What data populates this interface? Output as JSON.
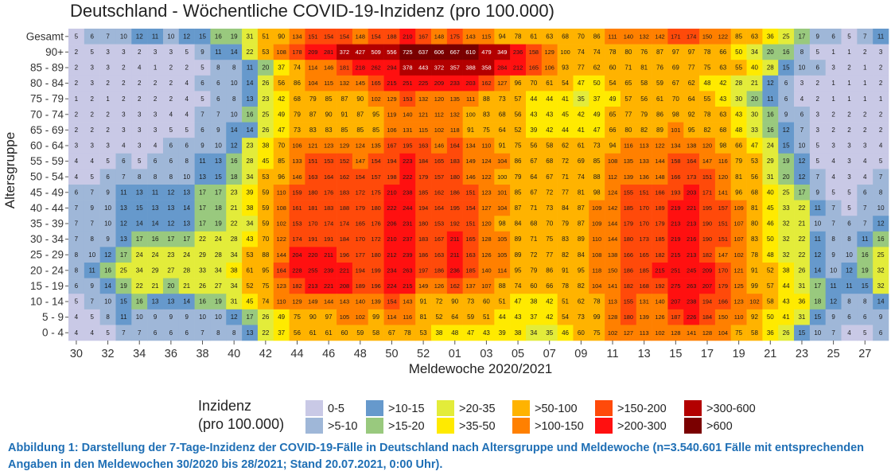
{
  "chart_data": {
    "type": "heatmap",
    "title": "Deutschland - Wöchentliche COVID-19-Inzidenz (pro 100.000)",
    "xlabel": "Meldewoche 2020/2021",
    "ylabel": "Altersgruppe",
    "x_tick_labels": [
      "30",
      "32",
      "34",
      "36",
      "38",
      "40",
      "42",
      "44",
      "46",
      "48",
      "50",
      "52",
      "01",
      "03",
      "05",
      "07",
      "09",
      "11",
      "13",
      "15",
      "17",
      "19",
      "21",
      "23",
      "25",
      "27"
    ],
    "rows": [
      "Gesamt",
      "90+",
      "85 - 89",
      "80 - 84",
      "75 - 79",
      "70 - 74",
      "65 - 69",
      "60 - 64",
      "55 - 59",
      "50 - 54",
      "45 - 49",
      "40 - 44",
      "35 - 39",
      "30 - 34",
      "25 - 29",
      "20 - 24",
      "15 - 19",
      "10 - 14",
      "5 - 9",
      "0 - 4"
    ],
    "values": [
      [
        5,
        6,
        7,
        10,
        12,
        11,
        10,
        12,
        15,
        16,
        19,
        31,
        51,
        90,
        134,
        151,
        154,
        154,
        148,
        154,
        188,
        210,
        167,
        148,
        175,
        143,
        115,
        94,
        78,
        61,
        63,
        68,
        70,
        86,
        111,
        140,
        132,
        142,
        171,
        174,
        150,
        122,
        85,
        63,
        36,
        25,
        17,
        9,
        6,
        5,
        7,
        11
      ],
      [
        2,
        5,
        3,
        3,
        2,
        3,
        3,
        5,
        9,
        11,
        14,
        22,
        53,
        108,
        178,
        209,
        281,
        372,
        427,
        509,
        556,
        725,
        637,
        606,
        667,
        610,
        479,
        349,
        236,
        158,
        129,
        100,
        74,
        74,
        78,
        80,
        76,
        87,
        97,
        97,
        78,
        66,
        50,
        34,
        20,
        16,
        8,
        5,
        1,
        1,
        2,
        3
      ],
      [
        2,
        3,
        3,
        2,
        4,
        1,
        2,
        2,
        5,
        8,
        8,
        11,
        20,
        37,
        74,
        114,
        146,
        181,
        218,
        262,
        294,
        378,
        443,
        372,
        357,
        388,
        358,
        284,
        212,
        165,
        106,
        93,
        77,
        62,
        60,
        71,
        81,
        76,
        69,
        77,
        75,
        63,
        55,
        40,
        28,
        15,
        10,
        6,
        3,
        2,
        1,
        2
      ],
      [
        2,
        3,
        2,
        2,
        2,
        2,
        2,
        4,
        6,
        6,
        10,
        14,
        26,
        56,
        86,
        104,
        115,
        132,
        145,
        165,
        215,
        251,
        225,
        209,
        233,
        203,
        162,
        127,
        96,
        70,
        61,
        54,
        47,
        50,
        54,
        65,
        58,
        59,
        67,
        62,
        48,
        42,
        28,
        21,
        12,
        6,
        3,
        2,
        1,
        1,
        1,
        2
      ],
      [
        1,
        2,
        1,
        2,
        2,
        2,
        2,
        4,
        5,
        6,
        8,
        13,
        23,
        42,
        68,
        79,
        85,
        87,
        90,
        102,
        129,
        153,
        132,
        120,
        135,
        111,
        88,
        73,
        57,
        44,
        44,
        41,
        35,
        37,
        49,
        57,
        56,
        61,
        70,
        64,
        55,
        43,
        30,
        20,
        11,
        6,
        4,
        2,
        1,
        1,
        1,
        1
      ],
      [
        2,
        2,
        2,
        3,
        3,
        3,
        4,
        4,
        7,
        7,
        10,
        16,
        25,
        49,
        79,
        87,
        90,
        91,
        87,
        95,
        119,
        140,
        121,
        112,
        132,
        100,
        83,
        68,
        56,
        43,
        43,
        45,
        42,
        49,
        65,
        77,
        79,
        86,
        98,
        92,
        78,
        63,
        43,
        30,
        16,
        9,
        6,
        3,
        2,
        2,
        2,
        2
      ],
      [
        2,
        2,
        2,
        3,
        3,
        3,
        5,
        5,
        6,
        9,
        14,
        14,
        26,
        47,
        73,
        83,
        83,
        85,
        85,
        85,
        106,
        131,
        115,
        102,
        118,
        91,
        75,
        64,
        52,
        39,
        42,
        44,
        41,
        47,
        66,
        80,
        82,
        89,
        101,
        95,
        82,
        68,
        48,
        33,
        16,
        12,
        7,
        3,
        2,
        2,
        2,
        2
      ],
      [
        3,
        3,
        3,
        4,
        3,
        4,
        6,
        6,
        9,
        10,
        12,
        23,
        38,
        70,
        106,
        121,
        123,
        129,
        124,
        135,
        167,
        195,
        163,
        146,
        164,
        134,
        110,
        91,
        75,
        56,
        58,
        62,
        61,
        73,
        94,
        116,
        113,
        122,
        134,
        138,
        120,
        98,
        66,
        47,
        24,
        15,
        10,
        5,
        3,
        3,
        3,
        4
      ],
      [
        4,
        4,
        5,
        6,
        5,
        6,
        6,
        8,
        11,
        13,
        16,
        28,
        45,
        85,
        133,
        151,
        153,
        152,
        147,
        154,
        194,
        223,
        184,
        165,
        183,
        149,
        124,
        104,
        86,
        67,
        68,
        72,
        69,
        85,
        108,
        135,
        133,
        144,
        158,
        164,
        147,
        116,
        79,
        53,
        29,
        19,
        12,
        5,
        4,
        3,
        4,
        5
      ],
      [
        4,
        5,
        6,
        7,
        8,
        8,
        8,
        10,
        13,
        15,
        18,
        34,
        53,
        96,
        146,
        163,
        164,
        162,
        154,
        157,
        198,
        222,
        179,
        157,
        180,
        146,
        122,
        100,
        79,
        64,
        67,
        71,
        74,
        88,
        112,
        139,
        136,
        148,
        166,
        173,
        151,
        120,
        81,
        56,
        31,
        20,
        12,
        7,
        4,
        3,
        4,
        7
      ],
      [
        6,
        7,
        9,
        11,
        13,
        11,
        12,
        13,
        17,
        17,
        23,
        39,
        59,
        110,
        159,
        180,
        176,
        183,
        172,
        175,
        210,
        238,
        185,
        162,
        186,
        151,
        123,
        101,
        85,
        67,
        72,
        77,
        81,
        98,
        124,
        155,
        151,
        166,
        193,
        203,
        171,
        141,
        96,
        68,
        40,
        25,
        17,
        9,
        5,
        5,
        6,
        8
      ],
      [
        7,
        9,
        10,
        13,
        15,
        13,
        13,
        14,
        17,
        18,
        21,
        38,
        59,
        108,
        161,
        181,
        183,
        188,
        179,
        180,
        222,
        244,
        194,
        164,
        195,
        154,
        127,
        104,
        87,
        71,
        73,
        84,
        87,
        109,
        142,
        185,
        170,
        189,
        219,
        221,
        195,
        157,
        109,
        81,
        45,
        33,
        22,
        11,
        7,
        5,
        7,
        10
      ],
      [
        7,
        7,
        10,
        12,
        14,
        14,
        12,
        13,
        17,
        19,
        22,
        34,
        59,
        102,
        153,
        170,
        174,
        174,
        165,
        176,
        206,
        231,
        180,
        153,
        192,
        151,
        120,
        98,
        84,
        68,
        70,
        79,
        87,
        109,
        144,
        179,
        170,
        179,
        213,
        213,
        190,
        151,
        107,
        80,
        46,
        32,
        21,
        10,
        7,
        6,
        7,
        12
      ],
      [
        7,
        8,
        9,
        13,
        17,
        16,
        17,
        17,
        22,
        24,
        28,
        43,
        70,
        122,
        174,
        191,
        191,
        184,
        170,
        172,
        210,
        237,
        183,
        167,
        211,
        165,
        128,
        105,
        89,
        71,
        75,
        83,
        89,
        110,
        144,
        180,
        173,
        185,
        219,
        216,
        190,
        151,
        107,
        83,
        50,
        32,
        22,
        11,
        8,
        8,
        11,
        16
      ],
      [
        8,
        10,
        12,
        17,
        24,
        24,
        23,
        24,
        29,
        28,
        34,
        53,
        88,
        144,
        204,
        220,
        211,
        196,
        177,
        180,
        212,
        239,
        186,
        163,
        211,
        163,
        126,
        105,
        89,
        72,
        77,
        82,
        84,
        108,
        138,
        166,
        165,
        182,
        215,
        213,
        182,
        147,
        102,
        78,
        48,
        32,
        22,
        12,
        9,
        10,
        16,
        25
      ],
      [
        8,
        11,
        16,
        25,
        34,
        29,
        27,
        28,
        33,
        34,
        38,
        61,
        95,
        164,
        228,
        255,
        239,
        221,
        194,
        199,
        234,
        263,
        197,
        186,
        236,
        185,
        140,
        114,
        95,
        79,
        86,
        91,
        95,
        118,
        150,
        186,
        185,
        215,
        251,
        245,
        209,
        170,
        121,
        91,
        52,
        38,
        26,
        14,
        10,
        12,
        19,
        32
      ],
      [
        6,
        9,
        14,
        19,
        22,
        21,
        20,
        21,
        26,
        27,
        34,
        52,
        75,
        123,
        182,
        213,
        221,
        208,
        189,
        196,
        224,
        215,
        149,
        126,
        162,
        137,
        107,
        88,
        74,
        60,
        66,
        78,
        82,
        104,
        141,
        182,
        168,
        192,
        275,
        263,
        207,
        179,
        125,
        99,
        57,
        44,
        31,
        17,
        11,
        11,
        15,
        32
      ],
      [
        5,
        7,
        10,
        15,
        16,
        13,
        13,
        14,
        16,
        19,
        31,
        45,
        74,
        110,
        129,
        149,
        144,
        143,
        140,
        139,
        154,
        143,
        91,
        72,
        90,
        73,
        60,
        51,
        47,
        38,
        42,
        51,
        62,
        78,
        113,
        155,
        131,
        140,
        207,
        238,
        194,
        166,
        123,
        102,
        58,
        43,
        36,
        18,
        12,
        8,
        8,
        14
      ],
      [
        4,
        5,
        8,
        11,
        10,
        9,
        9,
        9,
        10,
        10,
        12,
        17,
        26,
        49,
        75,
        90,
        97,
        105,
        102,
        99,
        114,
        116,
        81,
        52,
        64,
        59,
        51,
        44,
        43,
        37,
        42,
        54,
        73,
        99,
        128,
        180,
        139,
        126,
        187,
        226,
        184,
        150,
        110,
        92,
        50,
        41,
        31,
        15,
        9,
        6,
        6,
        9
      ],
      [
        4,
        4,
        5,
        7,
        7,
        6,
        6,
        6,
        7,
        8,
        8,
        13,
        22,
        37,
        56,
        61,
        61,
        60,
        59,
        58,
        67,
        78,
        53,
        38,
        48,
        47,
        43,
        39,
        38,
        34,
        35,
        46,
        60,
        75,
        102,
        127,
        113,
        102,
        128,
        141,
        128,
        104,
        75,
        58,
        36,
        26,
        15,
        10,
        7,
        4,
        5,
        6
      ]
    ],
    "legend": {
      "title_line1": "Inzidenz",
      "title_line2": "(pro 100.000)",
      "items": [
        {
          "label": "0-5",
          "color": "#c9c9e6"
        },
        {
          "label": ">5-10",
          "color": "#9fb7d8"
        },
        {
          "label": ">10-15",
          "color": "#6699cc"
        },
        {
          "label": ">15-20",
          "color": "#99c97e"
        },
        {
          "label": ">20-35",
          "color": "#e3ec3a"
        },
        {
          "label": ">35-50",
          "color": "#ffea00"
        },
        {
          "label": ">50-100",
          "color": "#ffb300"
        },
        {
          "label": ">100-150",
          "color": "#ff8000"
        },
        {
          "label": ">150-200",
          "color": "#ff4a0a"
        },
        {
          "label": ">200-300",
          "color": "#ff1010"
        },
        {
          "label": ">300-600",
          "color": "#b30000"
        },
        {
          "label": ">600",
          "color": "#7a0000"
        }
      ]
    }
  },
  "caption": "Abbildung 1: Darstellung der 7-Tage-Inzidenz der COVID-19-Fälle in Deutschland nach Altersgruppe und Meldewoche (n=3.540.601 Fälle mit entsprechenden Angaben in den Meldewochen 30/2020 bis 28/2021; Stand 20.07.2021, 0:00 Uhr)."
}
